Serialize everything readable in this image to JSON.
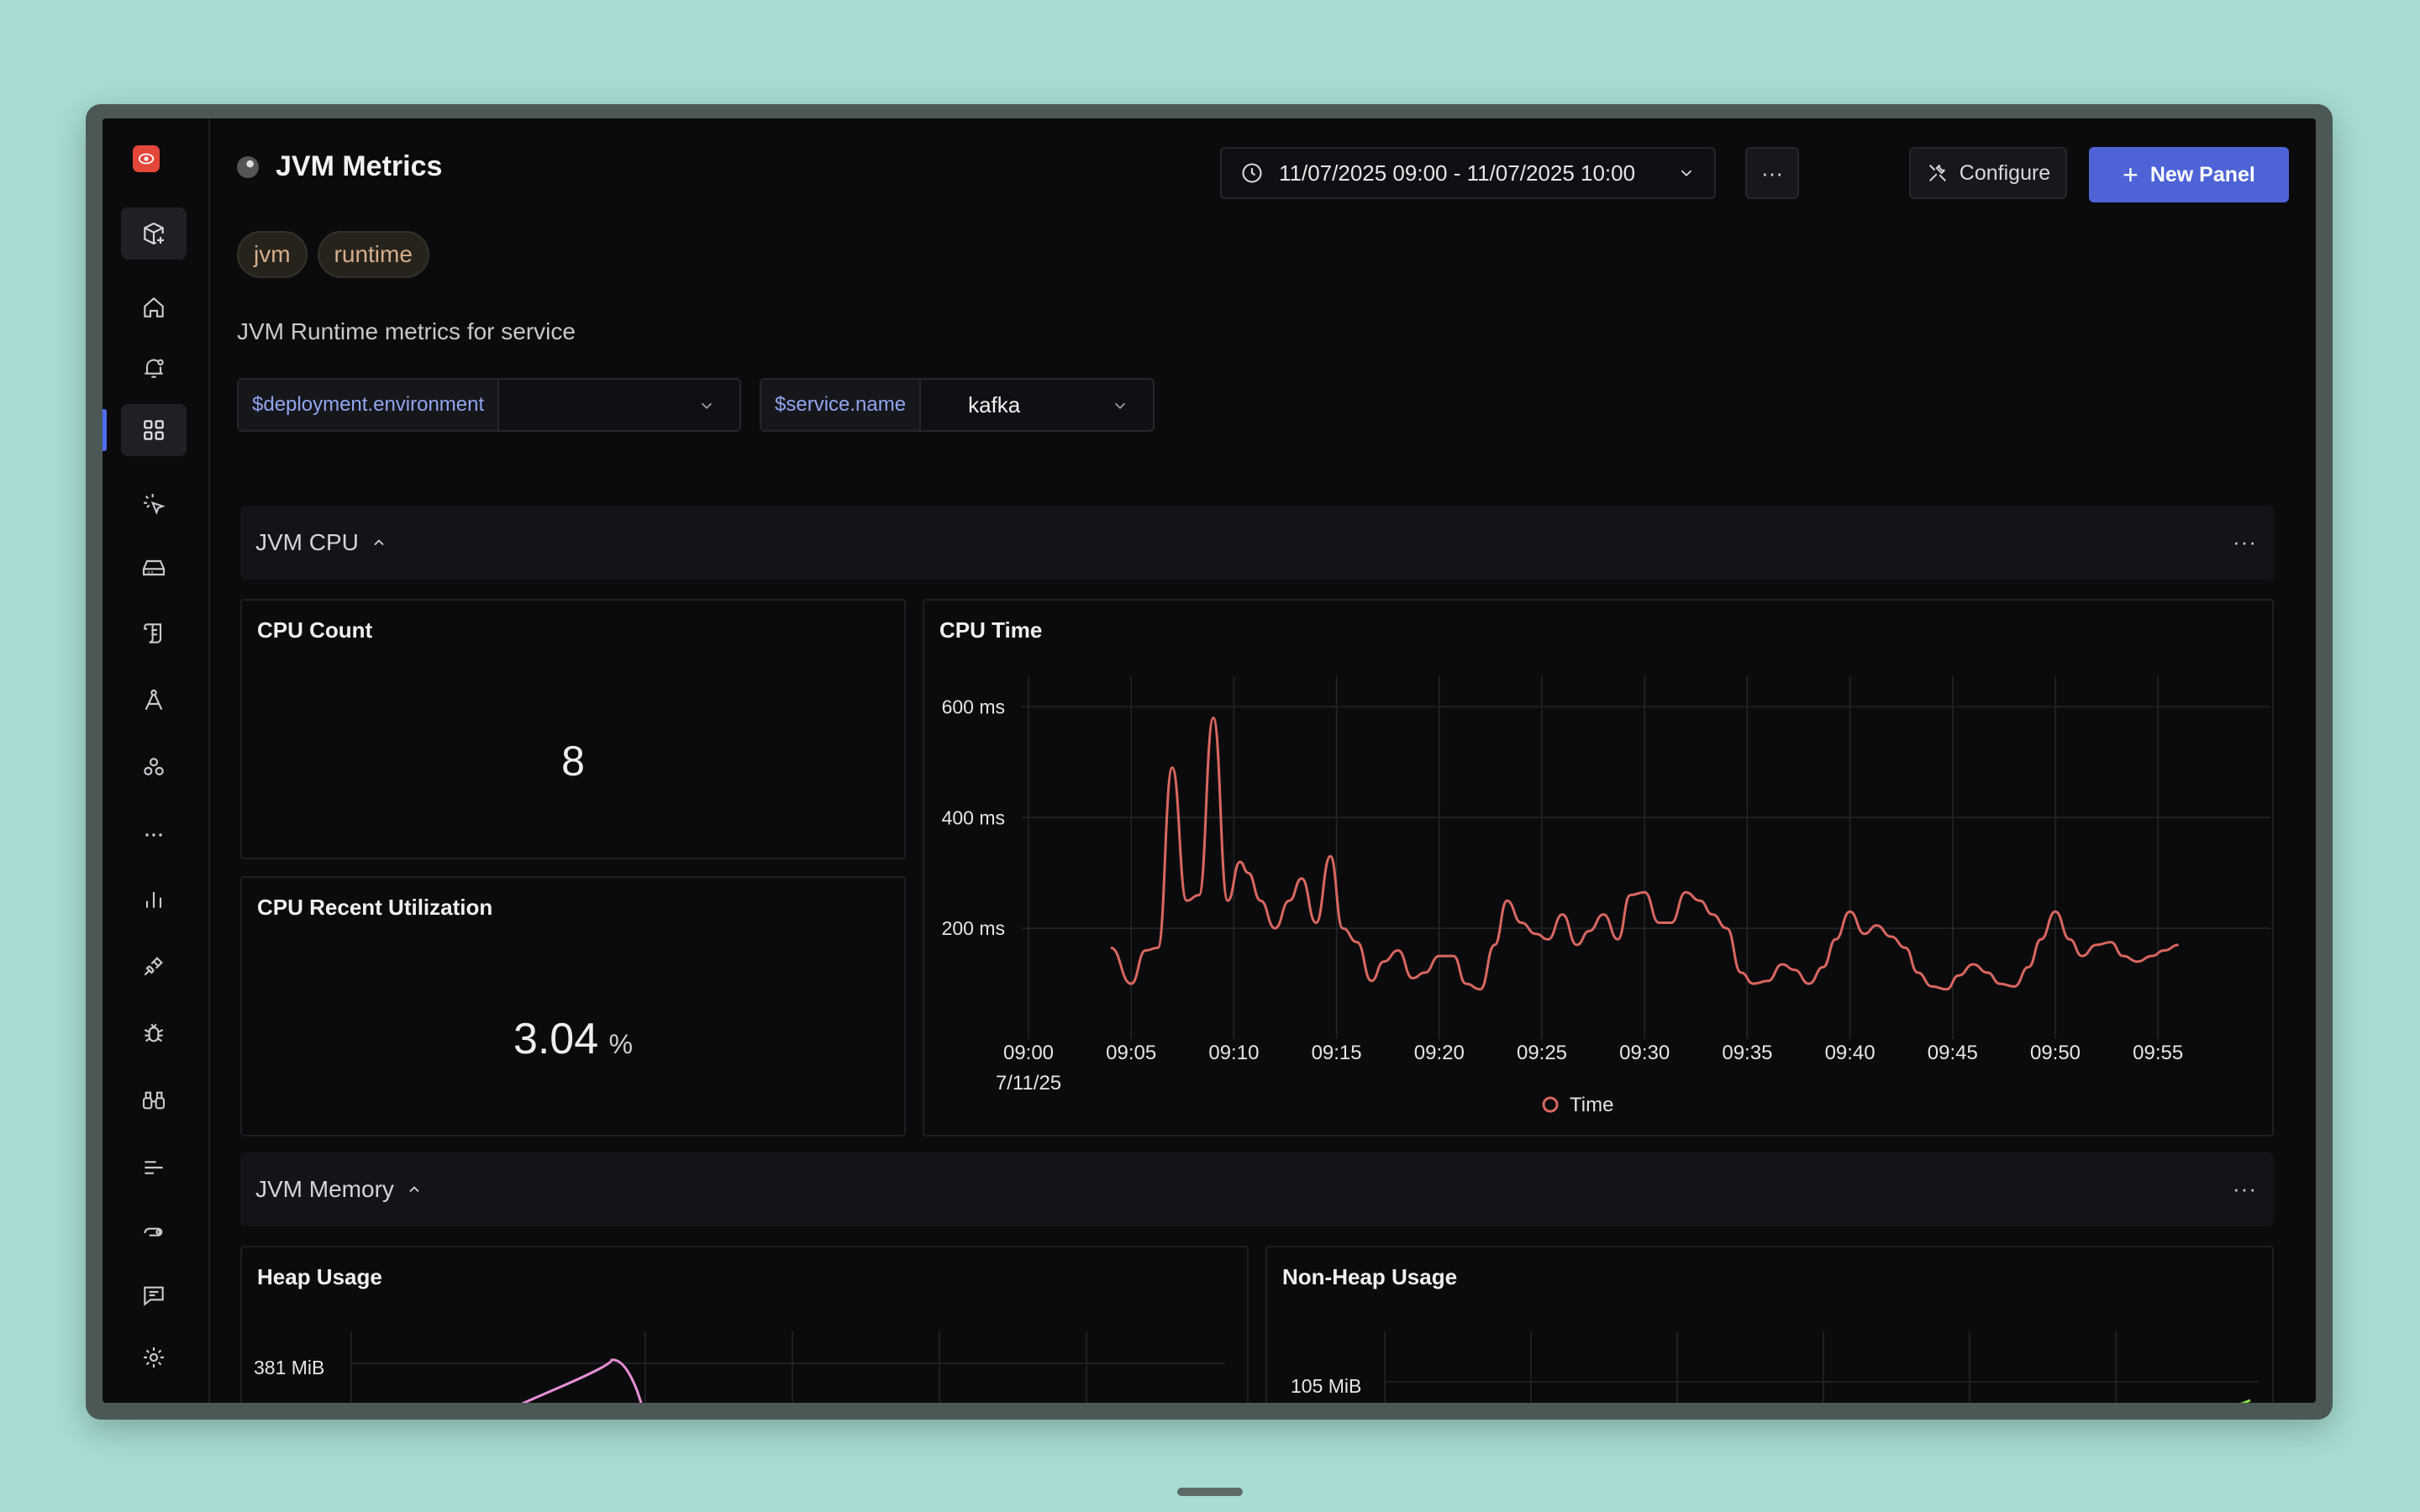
{
  "dashboard": {
    "title": "JVM Metrics",
    "tags": [
      "jvm",
      "runtime"
    ],
    "description": "JVM Runtime metrics for service",
    "time_range": "11/07/2025 09:00 - 11/07/2025 10:00",
    "more_label": "···",
    "configure_label": "Configure",
    "new_panel_label": "New Panel"
  },
  "variables": [
    {
      "label": "$deployment.environment",
      "value": ""
    },
    {
      "label": "$service.name",
      "value": "kafka"
    }
  ],
  "sections": {
    "cpu": {
      "title": "JVM CPU"
    },
    "memory": {
      "title": "JVM Memory"
    }
  },
  "panels": {
    "cpu_count": {
      "title": "CPU Count",
      "value": "8"
    },
    "cpu_util": {
      "title": "CPU Recent Utilization",
      "value": "3.04",
      "unit": "%"
    },
    "cpu_time": {
      "title": "CPU Time"
    },
    "heap": {
      "title": "Heap Usage",
      "y_label": "381 MiB"
    },
    "nonheap": {
      "title": "Non-Heap Usage",
      "y_label": "105 MiB"
    }
  },
  "colors": {
    "accent": "#4d63d6",
    "cpu_series": "#d9675f",
    "heap_series": "#e88fd8",
    "nonheap_series": "#86e34d"
  },
  "chart_data": {
    "type": "line",
    "title": "CPU Time",
    "ylabel": "",
    "xlabel": "",
    "y_ticks": [
      "600 ms",
      "400 ms",
      "200 ms"
    ],
    "y_tick_values": [
      600,
      400,
      200
    ],
    "ylim": [
      0,
      640
    ],
    "x_ticks": [
      "09:00",
      "09:05",
      "09:10",
      "09:15",
      "09:20",
      "09:25",
      "09:30",
      "09:35",
      "09:40",
      "09:45",
      "09:50",
      "09:55"
    ],
    "x_subtick": "7/11/25",
    "x_range_minutes": [
      0,
      59
    ],
    "legend": [
      "Time"
    ],
    "series": [
      {
        "name": "Time",
        "x": [
          4.0,
          5.0,
          5.7,
          6.3,
          7.0,
          7.7,
          8.3,
          9.0,
          9.7,
          10.3,
          10.7,
          11.3,
          12.0,
          12.7,
          13.3,
          14.0,
          14.7,
          15.3,
          16.0,
          16.7,
          17.3,
          18.0,
          18.7,
          19.3,
          20.0,
          20.7,
          21.3,
          22.0,
          22.7,
          23.3,
          24.0,
          24.7,
          25.3,
          26.0,
          26.7,
          27.3,
          28.0,
          28.7,
          29.3,
          30.0,
          30.7,
          31.3,
          32.0,
          32.7,
          33.3,
          34.0,
          34.7,
          35.3,
          36.0,
          36.7,
          37.3,
          38.0,
          38.7,
          39.3,
          40.0,
          40.7,
          41.3,
          42.0,
          42.7,
          43.3,
          44.0,
          44.7,
          45.3,
          46.0,
          46.7,
          47.3,
          48.0,
          48.7,
          49.3,
          50.0,
          50.7,
          51.3,
          52.0,
          52.7,
          53.3,
          54.0,
          54.7,
          55.3,
          56.0
        ],
        "values": [
          165,
          100,
          160,
          165,
          490,
          250,
          260,
          580,
          250,
          320,
          300,
          250,
          200,
          250,
          290,
          210,
          330,
          200,
          175,
          105,
          140,
          160,
          110,
          120,
          150,
          150,
          100,
          90,
          170,
          250,
          210,
          190,
          180,
          225,
          170,
          195,
          225,
          180,
          260,
          265,
          210,
          210,
          265,
          250,
          225,
          200,
          120,
          100,
          105,
          135,
          125,
          100,
          130,
          180,
          230,
          190,
          205,
          185,
          165,
          120,
          95,
          90,
          115,
          135,
          120,
          100,
          95,
          130,
          180,
          230,
          180,
          150,
          170,
          175,
          150,
          140,
          150,
          160,
          170
        ]
      }
    ]
  }
}
